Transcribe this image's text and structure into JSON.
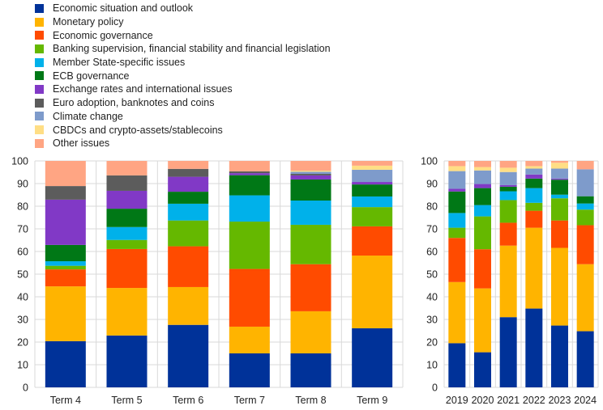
{
  "chart_data": [
    {
      "type": "bar",
      "stacked": true,
      "title": "",
      "xlabel": "",
      "ylabel": "",
      "ylim": [
        0,
        100
      ],
      "yticks": [
        "0",
        "10",
        "20",
        "30",
        "40",
        "50",
        "60",
        "70",
        "80",
        "90",
        "100"
      ],
      "categories": [
        "Term 4",
        "Term 5",
        "Term 6",
        "Term 7",
        "Term 8",
        "Term 9"
      ],
      "series": [
        {
          "name": "Economic situation and outlook",
          "color": "#003299",
          "values": [
            20.4,
            22.9,
            27.6,
            15.0,
            15.0,
            26.1
          ]
        },
        {
          "name": "Monetary policy",
          "color": "#FFB400",
          "values": [
            24.2,
            21.0,
            16.7,
            11.8,
            18.6,
            32.1
          ]
        },
        {
          "name": "Economic governance",
          "color": "#FF4B00",
          "values": [
            7.5,
            17.2,
            18.0,
            25.5,
            20.8,
            12.9
          ]
        },
        {
          "name": "Banking supervision, financial stability and financial legislation",
          "color": "#65B800",
          "values": [
            1.6,
            4.0,
            11.4,
            20.9,
            17.4,
            8.5
          ]
        },
        {
          "name": "Member State-specific issues",
          "color": "#00B1EA",
          "values": [
            2.0,
            5.7,
            7.4,
            11.6,
            10.7,
            4.7
          ]
        },
        {
          "name": "ECB governance",
          "color": "#007816",
          "values": [
            7.2,
            8.1,
            5.3,
            8.9,
            9.3,
            5.3
          ]
        },
        {
          "name": "Exchange rates and international issues",
          "color": "#8139C6",
          "values": [
            20.0,
            7.9,
            6.6,
            0.9,
            1.8,
            1.1
          ]
        },
        {
          "name": "Euro adoption, banknotes and coins",
          "color": "#5C5C5C",
          "values": [
            6.0,
            6.8,
            3.5,
            0.8,
            0.7,
            0.0
          ]
        },
        {
          "name": "Climate change",
          "color": "#7E9BCB",
          "values": [
            0,
            0,
            0,
            0,
            0.9,
            5.4
          ]
        },
        {
          "name": "CBDCs and crypto-assets/stablecoins",
          "color": "#FFDE85",
          "values": [
            0,
            0,
            0,
            0,
            0.5,
            1.8
          ]
        },
        {
          "name": "Other issues",
          "color": "#FFA583",
          "values": [
            11.1,
            6.4,
            3.5,
            4.6,
            4.3,
            2.1
          ]
        }
      ]
    },
    {
      "type": "bar",
      "stacked": true,
      "title": "",
      "xlabel": "",
      "ylabel": "",
      "ylim": [
        0,
        100
      ],
      "yticks": [
        "0",
        "10",
        "20",
        "30",
        "40",
        "50",
        "60",
        "70",
        "80",
        "90",
        "100"
      ],
      "categories": [
        "2019",
        "2020",
        "2021",
        "2022",
        "2023",
        "2024"
      ],
      "series": [
        {
          "name": "Economic situation and outlook",
          "color": "#003299",
          "values": [
            19.5,
            15.5,
            31.0,
            34.8,
            27.3,
            24.8
          ]
        },
        {
          "name": "Monetary policy",
          "color": "#FFB400",
          "values": [
            27.0,
            28.2,
            31.6,
            35.7,
            34.3,
            29.6
          ]
        },
        {
          "name": "Economic governance",
          "color": "#FF4B00",
          "values": [
            19.5,
            17.3,
            10.1,
            7.5,
            12.1,
            17.2
          ]
        },
        {
          "name": "Banking supervision, financial stability and financial legislation",
          "color": "#65B800",
          "values": [
            4.5,
            14.5,
            10.0,
            3.5,
            9.8,
            6.9
          ]
        },
        {
          "name": "Member State-specific issues",
          "color": "#00B1EA",
          "values": [
            6.5,
            5.0,
            3.9,
            6.5,
            1.6,
            2.7
          ]
        },
        {
          "name": "ECB governance",
          "color": "#007816",
          "values": [
            9.5,
            7.5,
            2.0,
            4.2,
            6.6,
            3.2
          ]
        },
        {
          "name": "Exchange rates and international issues",
          "color": "#8139C6",
          "values": [
            1.2,
            1.8,
            0.7,
            1.8,
            0.5,
            0
          ]
        },
        {
          "name": "Euro adoption, banknotes and coins",
          "color": "#5C5C5C",
          "values": [
            0,
            0,
            0,
            0,
            0,
            0
          ]
        },
        {
          "name": "Climate change",
          "color": "#7E9BCB",
          "values": [
            7.8,
            6.0,
            5.8,
            2.6,
            4.4,
            11.9
          ]
        },
        {
          "name": "CBDCs and crypto-assets/stablecoins",
          "color": "#FFDE85",
          "values": [
            2.2,
            1.5,
            1.9,
            1.1,
            2.6,
            0
          ]
        },
        {
          "name": "Other issues",
          "color": "#FFA583",
          "values": [
            2.3,
            2.7,
            3.0,
            2.3,
            0.8,
            3.7
          ]
        }
      ]
    }
  ],
  "legend": [
    "Economic situation and outlook",
    "Monetary policy",
    "Economic governance",
    "Banking supervision, financial stability and financial legislation",
    "Member State-specific issues",
    "ECB governance",
    "Exchange rates and international issues",
    "Euro adoption, banknotes and coins",
    "Climate change",
    "CBDCs and crypto-assets/stablecoins",
    "Other issues"
  ]
}
